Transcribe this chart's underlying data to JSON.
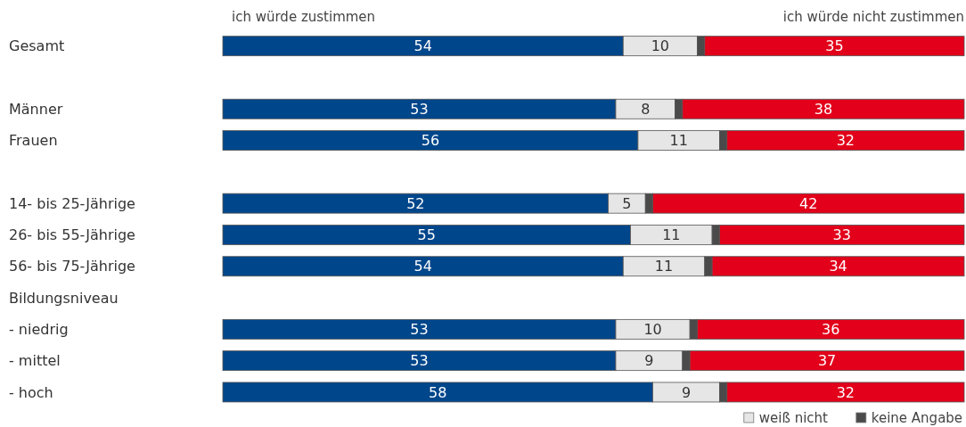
{
  "chart_data": {
    "type": "bar",
    "orientation": "horizontal",
    "stacked": true,
    "categories": [
      "Gesamt",
      null,
      "Männer",
      "Frauen",
      null,
      "14- bis 25-Jährige",
      "26- bis 55-Jährige",
      "56- bis 75-Jährige",
      "Bildungsniveau",
      "- niedrig",
      "- mittel",
      "- hoch"
    ],
    "series": [
      {
        "name": "ich würde zustimmen",
        "color": "#00468b",
        "values": [
          54,
          null,
          53,
          56,
          null,
          52,
          55,
          54,
          null,
          53,
          53,
          58
        ],
        "value_labels": [
          "54",
          null,
          "53",
          "56",
          null,
          "52",
          "55",
          "54",
          null,
          "53",
          "53",
          "58"
        ]
      },
      {
        "name": "weiß nicht",
        "color": "#e6e6e6",
        "values": [
          10,
          null,
          8,
          11,
          null,
          5,
          11,
          11,
          null,
          10,
          9,
          9
        ],
        "value_labels": [
          "10",
          null,
          "8",
          "11",
          null,
          "5",
          "11",
          "11",
          null,
          "10",
          "9",
          "9"
        ]
      },
      {
        "name": "keine Angabe",
        "color": "#4a4a4a",
        "values": [
          1,
          null,
          1,
          1,
          null,
          1,
          1,
          1,
          null,
          1,
          1,
          1
        ]
      },
      {
        "name": "ich würde nicht zustimmen",
        "color": "#e2001a",
        "values": [
          35,
          null,
          38,
          32,
          null,
          42,
          33,
          34,
          null,
          36,
          37,
          32
        ],
        "value_labels": [
          "35",
          null,
          "38",
          "32",
          null,
          "42",
          "33",
          "34",
          null,
          "36",
          "37",
          "32"
        ]
      }
    ],
    "xlim": [
      0,
      100
    ],
    "tick_labels": "y",
    "legend": "bottom right"
  }
}
